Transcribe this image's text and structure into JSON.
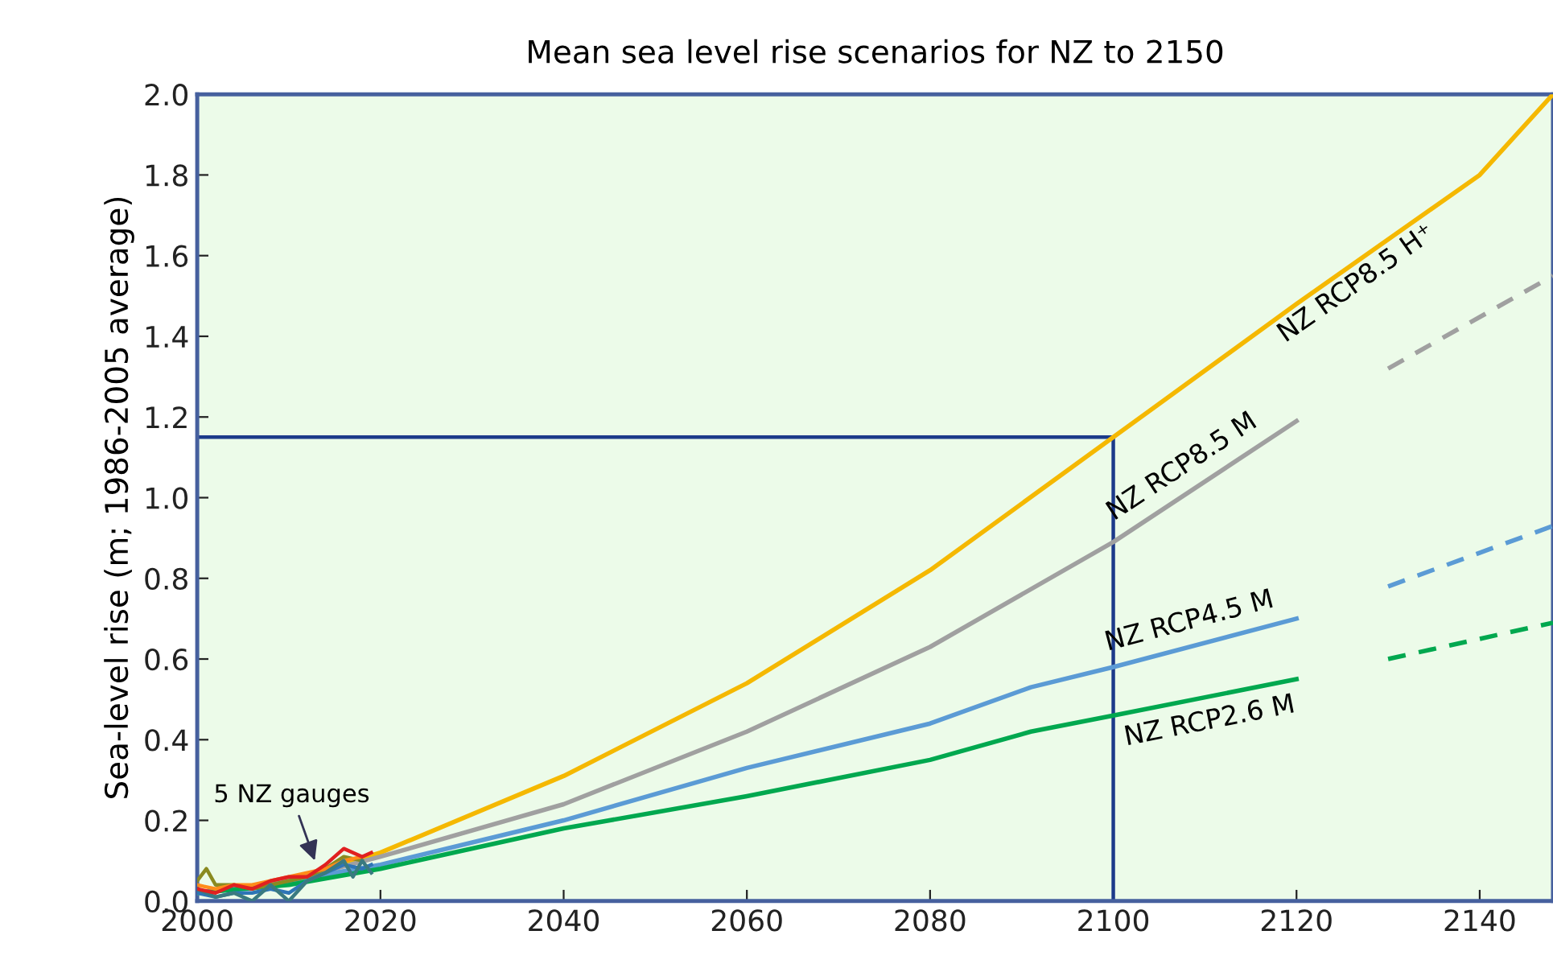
{
  "chart_data": {
    "type": "line",
    "title": "Mean sea level rise scenarios for NZ to 2150",
    "ylabel": "Sea-level rise (m; 1986-2005 average)",
    "xlim": [
      2000,
      2148
    ],
    "xticks": [
      2000,
      2020,
      2040,
      2060,
      2080,
      2100,
      2120,
      2140
    ],
    "ylim": [
      0,
      2.0
    ],
    "yticks": [
      {
        "value": 0,
        "label": "0.0"
      },
      {
        "value": 0.2,
        "label": "0.2"
      },
      {
        "value": 0.4,
        "label": "0.4"
      },
      {
        "value": 0.6,
        "label": "0.6"
      },
      {
        "value": 0.8,
        "label": "0.8"
      },
      {
        "value": 1.0,
        "label": "1.0"
      },
      {
        "value": 1.2,
        "label": "1.2"
      },
      {
        "value": 1.4,
        "label": "1.4"
      },
      {
        "value": 1.6,
        "label": "1.6"
      },
      {
        "value": 1.8,
        "label": "1.8"
      },
      {
        "value": 2.0,
        "label": "2.0"
      }
    ],
    "grid": false,
    "legend": false,
    "series": [
      {
        "color": "#f5b800",
        "x": [
          2000,
          2010,
          2020,
          2040,
          2060,
          2080,
          2100,
          2120,
          2140,
          2148
        ],
        "values": [
          0.02,
          0.05,
          0.12,
          0.31,
          0.54,
          0.82,
          1.15,
          1.48,
          1.8,
          2.0
        ]
      },
      {
        "color": "#a0a0a0",
        "x": [
          2000,
          2010,
          2020,
          2040,
          2060,
          2080,
          2100,
          2120
        ],
        "values": [
          0.02,
          0.05,
          0.11,
          0.24,
          0.42,
          0.63,
          0.89,
          1.19
        ]
      },
      {
        "color": "#a0a0a0",
        "line_style": "dashed",
        "x": [
          2130,
          2148
        ],
        "values": [
          1.32,
          1.55
        ]
      },
      {
        "color": "#5b9bd5",
        "x": [
          2000,
          2010,
          2020,
          2040,
          2060,
          2080,
          2091,
          2100,
          2120
        ],
        "values": [
          0.02,
          0.05,
          0.09,
          0.2,
          0.33,
          0.44,
          0.53,
          0.58,
          0.7
        ]
      },
      {
        "color": "#5b9bd5",
        "line_style": "dashed",
        "x": [
          2130,
          2148
        ],
        "values": [
          0.78,
          0.93
        ]
      },
      {
        "color": "#00a84f",
        "x": [
          2000,
          2010,
          2020,
          2040,
          2060,
          2080,
          2091,
          2100,
          2120
        ],
        "values": [
          0.02,
          0.04,
          0.08,
          0.18,
          0.26,
          0.35,
          0.42,
          0.46,
          0.55
        ]
      },
      {
        "color": "#00a84f",
        "line_style": "dashed",
        "x": [
          2130,
          2148
        ],
        "values": [
          0.6,
          0.69
        ]
      },
      {
        "color": "#8a8a20",
        "x": [
          2000,
          2001,
          2002,
          2004,
          2006,
          2008,
          2010,
          2012,
          2014,
          2016,
          2018
        ],
        "values": [
          0.05,
          0.08,
          0.04,
          0.04,
          0.03,
          0.04,
          0.05,
          0.06,
          0.08,
          0.11,
          0.1
        ]
      },
      {
        "color": "#2e75b6",
        "x": [
          2000,
          2002,
          2004,
          2006,
          2008,
          2010,
          2012,
          2014,
          2016,
          2018,
          2019
        ],
        "values": [
          0.02,
          0.01,
          0.02,
          0.02,
          0.03,
          0.02,
          0.05,
          0.07,
          0.09,
          0.08,
          0.09
        ]
      },
      {
        "color": "#ff8c1a",
        "x": [
          2000,
          2002,
          2004,
          2006,
          2008,
          2010,
          2012,
          2014,
          2016,
          2018
        ],
        "values": [
          0.04,
          0.03,
          0.04,
          0.04,
          0.05,
          0.06,
          0.07,
          0.08,
          0.1,
          0.11
        ]
      },
      {
        "color": "#3a7a80",
        "x": [
          2000,
          2002,
          2004,
          2006,
          2008,
          2010,
          2012,
          2014,
          2016,
          2017,
          2018,
          2019
        ],
        "values": [
          0.03,
          0.01,
          0.02,
          0.0,
          0.04,
          0.0,
          0.05,
          0.07,
          0.1,
          0.06,
          0.1,
          0.07
        ]
      },
      {
        "color": "#e02020",
        "x": [
          2000,
          2002,
          2004,
          2006,
          2008,
          2010,
          2012,
          2014,
          2016,
          2018,
          2019
        ],
        "values": [
          0.03,
          0.02,
          0.04,
          0.03,
          0.05,
          0.06,
          0.06,
          0.09,
          0.13,
          0.11,
          0.12
        ]
      },
      {
        "color": "#1c3a8a",
        "x": [
          2000,
          2100,
          2100
        ],
        "values": [
          1.15,
          1.15,
          0
        ]
      }
    ],
    "annotations": [
      {
        "text": "NZ RCP8.5 H⁺",
        "x": 2125,
        "y": 1.58
      },
      {
        "text": "NZ RCP8.5 M",
        "x": 2109,
        "y": 1.025
      },
      {
        "text": "NZ RCP4.5 M",
        "x": 2109,
        "y": 0.634
      },
      {
        "text": "NZ RCP2.6 M",
        "x": 2110,
        "y": 0.505
      },
      {
        "text": "5 NZ gauges",
        "x": 2013,
        "y": 0.09
      }
    ]
  }
}
